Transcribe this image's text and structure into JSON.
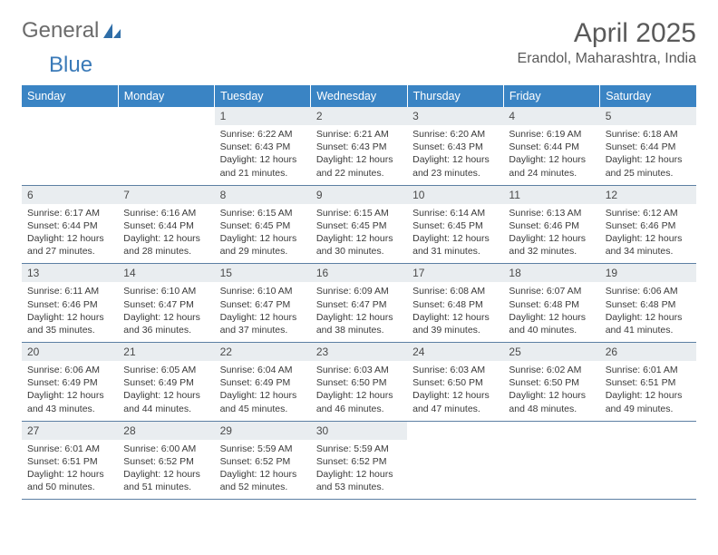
{
  "logo": {
    "text1": "General",
    "text2": "Blue"
  },
  "title": "April 2025",
  "location": "Erandol, Maharashtra, India",
  "colors": {
    "header_bg": "#3a84c4",
    "header_text": "#ffffff",
    "daynum_bg": "#e9edf0",
    "border": "#5c7fa3",
    "logo_gray": "#6b6b6b",
    "logo_blue": "#3a7ab8"
  },
  "dow": [
    "Sunday",
    "Monday",
    "Tuesday",
    "Wednesday",
    "Thursday",
    "Friday",
    "Saturday"
  ],
  "weeks": [
    [
      {
        "n": "",
        "sr": "",
        "ss": "",
        "dl": ""
      },
      {
        "n": "",
        "sr": "",
        "ss": "",
        "dl": ""
      },
      {
        "n": "1",
        "sr": "Sunrise: 6:22 AM",
        "ss": "Sunset: 6:43 PM",
        "dl": "Daylight: 12 hours and 21 minutes."
      },
      {
        "n": "2",
        "sr": "Sunrise: 6:21 AM",
        "ss": "Sunset: 6:43 PM",
        "dl": "Daylight: 12 hours and 22 minutes."
      },
      {
        "n": "3",
        "sr": "Sunrise: 6:20 AM",
        "ss": "Sunset: 6:43 PM",
        "dl": "Daylight: 12 hours and 23 minutes."
      },
      {
        "n": "4",
        "sr": "Sunrise: 6:19 AM",
        "ss": "Sunset: 6:44 PM",
        "dl": "Daylight: 12 hours and 24 minutes."
      },
      {
        "n": "5",
        "sr": "Sunrise: 6:18 AM",
        "ss": "Sunset: 6:44 PM",
        "dl": "Daylight: 12 hours and 25 minutes."
      }
    ],
    [
      {
        "n": "6",
        "sr": "Sunrise: 6:17 AM",
        "ss": "Sunset: 6:44 PM",
        "dl": "Daylight: 12 hours and 27 minutes."
      },
      {
        "n": "7",
        "sr": "Sunrise: 6:16 AM",
        "ss": "Sunset: 6:44 PM",
        "dl": "Daylight: 12 hours and 28 minutes."
      },
      {
        "n": "8",
        "sr": "Sunrise: 6:15 AM",
        "ss": "Sunset: 6:45 PM",
        "dl": "Daylight: 12 hours and 29 minutes."
      },
      {
        "n": "9",
        "sr": "Sunrise: 6:15 AM",
        "ss": "Sunset: 6:45 PM",
        "dl": "Daylight: 12 hours and 30 minutes."
      },
      {
        "n": "10",
        "sr": "Sunrise: 6:14 AM",
        "ss": "Sunset: 6:45 PM",
        "dl": "Daylight: 12 hours and 31 minutes."
      },
      {
        "n": "11",
        "sr": "Sunrise: 6:13 AM",
        "ss": "Sunset: 6:46 PM",
        "dl": "Daylight: 12 hours and 32 minutes."
      },
      {
        "n": "12",
        "sr": "Sunrise: 6:12 AM",
        "ss": "Sunset: 6:46 PM",
        "dl": "Daylight: 12 hours and 34 minutes."
      }
    ],
    [
      {
        "n": "13",
        "sr": "Sunrise: 6:11 AM",
        "ss": "Sunset: 6:46 PM",
        "dl": "Daylight: 12 hours and 35 minutes."
      },
      {
        "n": "14",
        "sr": "Sunrise: 6:10 AM",
        "ss": "Sunset: 6:47 PM",
        "dl": "Daylight: 12 hours and 36 minutes."
      },
      {
        "n": "15",
        "sr": "Sunrise: 6:10 AM",
        "ss": "Sunset: 6:47 PM",
        "dl": "Daylight: 12 hours and 37 minutes."
      },
      {
        "n": "16",
        "sr": "Sunrise: 6:09 AM",
        "ss": "Sunset: 6:47 PM",
        "dl": "Daylight: 12 hours and 38 minutes."
      },
      {
        "n": "17",
        "sr": "Sunrise: 6:08 AM",
        "ss": "Sunset: 6:48 PM",
        "dl": "Daylight: 12 hours and 39 minutes."
      },
      {
        "n": "18",
        "sr": "Sunrise: 6:07 AM",
        "ss": "Sunset: 6:48 PM",
        "dl": "Daylight: 12 hours and 40 minutes."
      },
      {
        "n": "19",
        "sr": "Sunrise: 6:06 AM",
        "ss": "Sunset: 6:48 PM",
        "dl": "Daylight: 12 hours and 41 minutes."
      }
    ],
    [
      {
        "n": "20",
        "sr": "Sunrise: 6:06 AM",
        "ss": "Sunset: 6:49 PM",
        "dl": "Daylight: 12 hours and 43 minutes."
      },
      {
        "n": "21",
        "sr": "Sunrise: 6:05 AM",
        "ss": "Sunset: 6:49 PM",
        "dl": "Daylight: 12 hours and 44 minutes."
      },
      {
        "n": "22",
        "sr": "Sunrise: 6:04 AM",
        "ss": "Sunset: 6:49 PM",
        "dl": "Daylight: 12 hours and 45 minutes."
      },
      {
        "n": "23",
        "sr": "Sunrise: 6:03 AM",
        "ss": "Sunset: 6:50 PM",
        "dl": "Daylight: 12 hours and 46 minutes."
      },
      {
        "n": "24",
        "sr": "Sunrise: 6:03 AM",
        "ss": "Sunset: 6:50 PM",
        "dl": "Daylight: 12 hours and 47 minutes."
      },
      {
        "n": "25",
        "sr": "Sunrise: 6:02 AM",
        "ss": "Sunset: 6:50 PM",
        "dl": "Daylight: 12 hours and 48 minutes."
      },
      {
        "n": "26",
        "sr": "Sunrise: 6:01 AM",
        "ss": "Sunset: 6:51 PM",
        "dl": "Daylight: 12 hours and 49 minutes."
      }
    ],
    [
      {
        "n": "27",
        "sr": "Sunrise: 6:01 AM",
        "ss": "Sunset: 6:51 PM",
        "dl": "Daylight: 12 hours and 50 minutes."
      },
      {
        "n": "28",
        "sr": "Sunrise: 6:00 AM",
        "ss": "Sunset: 6:52 PM",
        "dl": "Daylight: 12 hours and 51 minutes."
      },
      {
        "n": "29",
        "sr": "Sunrise: 5:59 AM",
        "ss": "Sunset: 6:52 PM",
        "dl": "Daylight: 12 hours and 52 minutes."
      },
      {
        "n": "30",
        "sr": "Sunrise: 5:59 AM",
        "ss": "Sunset: 6:52 PM",
        "dl": "Daylight: 12 hours and 53 minutes."
      },
      {
        "n": "",
        "sr": "",
        "ss": "",
        "dl": ""
      },
      {
        "n": "",
        "sr": "",
        "ss": "",
        "dl": ""
      },
      {
        "n": "",
        "sr": "",
        "ss": "",
        "dl": ""
      }
    ]
  ]
}
